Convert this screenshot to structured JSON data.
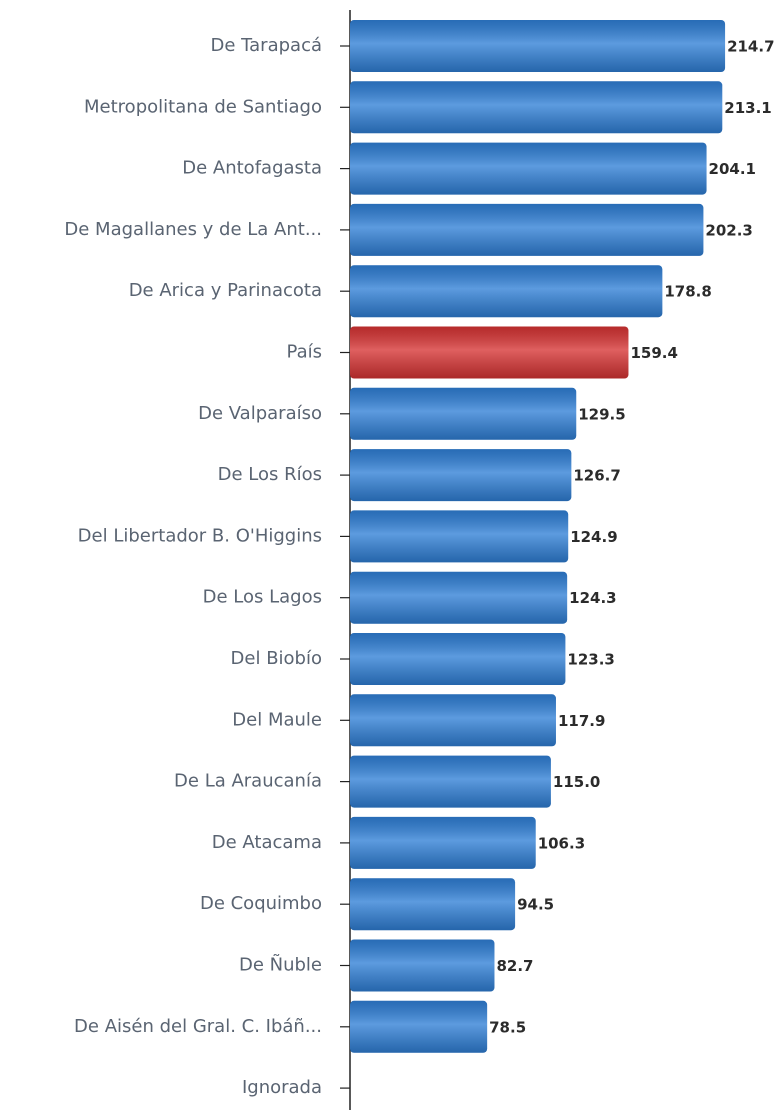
{
  "chart_data": {
    "type": "barh",
    "categories": [
      "De Tarapacá",
      "Metropolitana de Santiago",
      "De Antofagasta",
      "De Magallanes y de La Ant...",
      "De Arica y Parinacota",
      "País",
      "De Valparaíso",
      "De Los Ríos",
      "Del Libertador B. O'Higgins",
      "De Los Lagos",
      "Del Biobío",
      "Del Maule",
      "De La Araucanía",
      "De Atacama",
      "De Coquimbo",
      "De Ñuble",
      "De Aisén del Gral. C. Ibáñ...",
      "Ignorada"
    ],
    "values": [
      214.7,
      213.1,
      204.1,
      202.3,
      178.8,
      159.4,
      129.5,
      126.7,
      124.9,
      124.3,
      123.3,
      117.9,
      115.0,
      106.3,
      94.5,
      82.7,
      78.5,
      null
    ],
    "value_labels": [
      "214.7",
      "213.1",
      "204.1",
      "202.3",
      "178.8",
      "159.4",
      "129.5",
      "126.7",
      "124.9",
      "124.3",
      "123.3",
      "117.9",
      "115.0",
      "106.3",
      "94.5",
      "82.7",
      "78.5",
      null
    ],
    "colors": [
      "#2f7fd6",
      "#2f7fd6",
      "#2f7fd6",
      "#2f7fd6",
      "#2f7fd6",
      "#d63333",
      "#2f7fd6",
      "#2f7fd6",
      "#2f7fd6",
      "#2f7fd6",
      "#2f7fd6",
      "#2f7fd6",
      "#2f7fd6",
      "#2f7fd6",
      "#2f7fd6",
      "#2f7fd6",
      "#2f7fd6",
      "#2f7fd6"
    ],
    "xlim": [
      0,
      245
    ]
  }
}
